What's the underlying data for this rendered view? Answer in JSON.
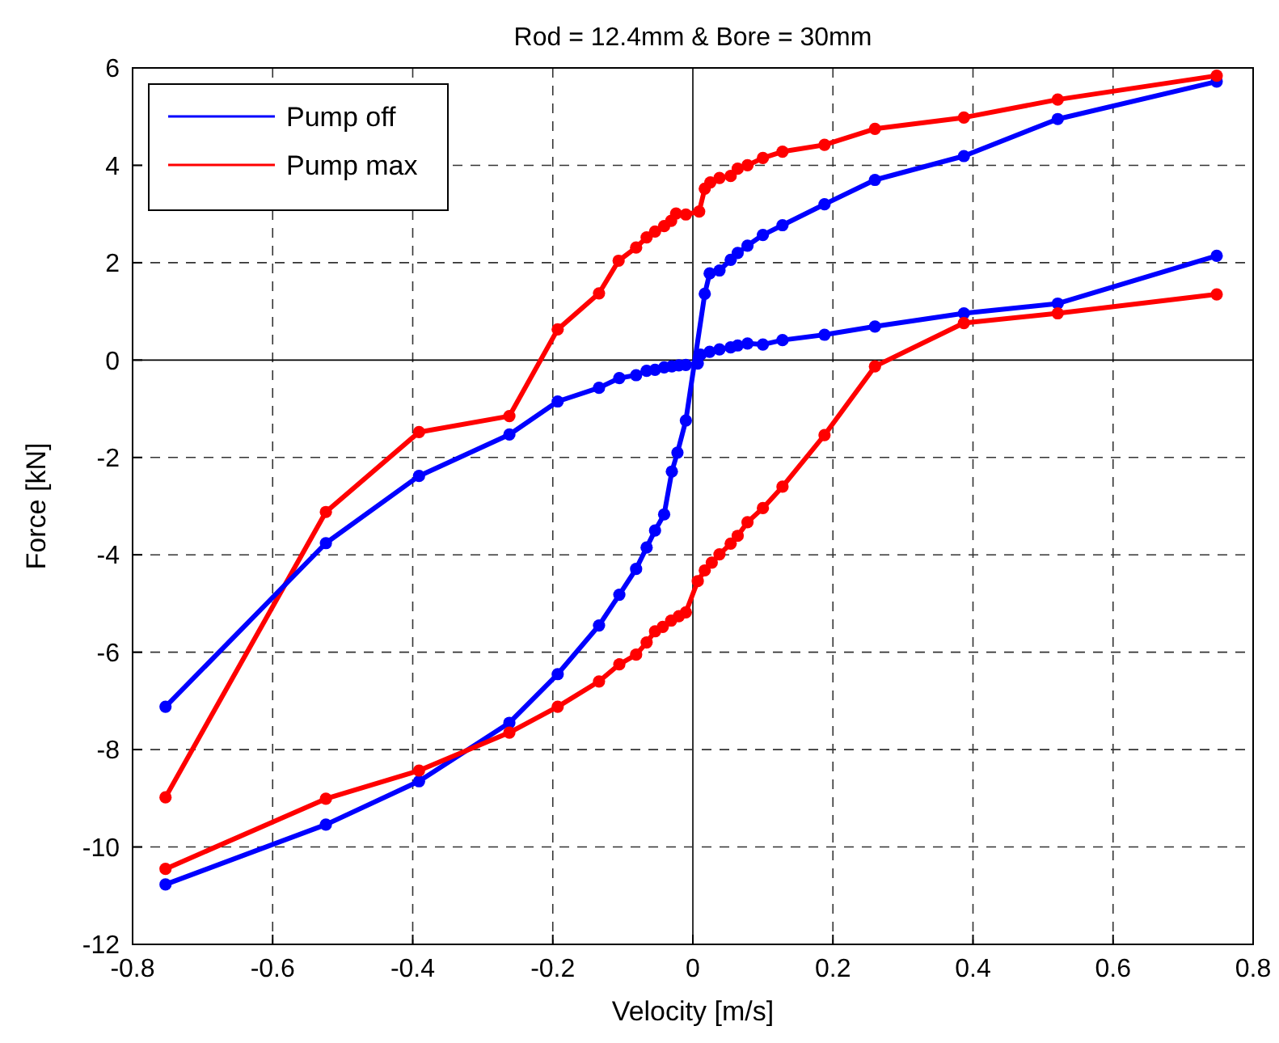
{
  "chart_data": {
    "type": "line",
    "title": "Rod = 12.4mm & Bore = 30mm",
    "xlabel": "Velocity [m/s]",
    "ylabel": "Force [kN]",
    "xlim": [
      -0.8,
      0.8
    ],
    "xticks": [
      -0.8,
      -0.6,
      -0.4,
      -0.2,
      0,
      0.2,
      0.4,
      0.6,
      0.8
    ],
    "ylim": [
      -12,
      6
    ],
    "yticks": [
      -12,
      -10,
      -8,
      -6,
      -4,
      -2,
      0,
      2,
      4,
      6
    ],
    "grid": true,
    "legend": "top left",
    "marker": "circle",
    "line_style": "solid",
    "series": [
      {
        "name": "Pump off",
        "color": "#0000ff",
        "x": [
          -0.753,
          -0.524,
          -0.391,
          -0.262,
          -0.193,
          -0.134,
          -0.105,
          -0.081,
          -0.066,
          -0.054,
          -0.041,
          -0.03,
          -0.022,
          -0.01,
          0.017,
          0.024,
          0.038,
          0.054,
          0.064,
          0.078,
          0.1,
          0.128,
          0.188,
          0.26,
          0.387,
          0.521,
          0.748
        ],
        "values": [
          -10.77,
          -9.54,
          -8.65,
          -7.45,
          -6.45,
          -5.45,
          -4.82,
          -4.29,
          -3.85,
          -3.5,
          -3.17,
          -2.29,
          -1.9,
          -1.24,
          1.36,
          1.78,
          1.84,
          2.06,
          2.2,
          2.35,
          2.57,
          2.77,
          3.2,
          3.7,
          4.19,
          4.95,
          5.72
        ]
      },
      {
        "name": "Pump max",
        "color": "#ff0000",
        "x": [
          -0.753,
          -0.524,
          -0.391,
          -0.262,
          -0.193,
          -0.134,
          -0.106,
          -0.081,
          -0.066,
          -0.054,
          -0.041,
          -0.031,
          -0.024,
          -0.01,
          0.009,
          0.017,
          0.025,
          0.038,
          0.054,
          0.064,
          0.078,
          0.1,
          0.128,
          0.188,
          0.26,
          0.387,
          0.521,
          0.748
        ],
        "values": [
          -8.98,
          -3.12,
          -1.48,
          -1.15,
          0.63,
          1.37,
          2.04,
          2.31,
          2.52,
          2.64,
          2.75,
          2.86,
          3.01,
          2.99,
          3.05,
          3.52,
          3.65,
          3.74,
          3.78,
          3.93,
          4.0,
          4.15,
          4.28,
          4.42,
          4.75,
          4.98,
          5.35,
          5.84
        ]
      },
      {
        "color": "#0000ff",
        "x": [
          -0.753,
          -0.524,
          -0.391,
          -0.262,
          -0.193,
          -0.134,
          -0.105,
          -0.081,
          -0.066,
          -0.054,
          -0.041,
          -0.03,
          -0.02,
          -0.01,
          0.007,
          0.011,
          0.024,
          0.038,
          0.054,
          0.064,
          0.078,
          0.1,
          0.128,
          0.188,
          0.26,
          0.387,
          0.521,
          0.748
        ],
        "values": [
          -7.12,
          -3.76,
          -2.38,
          -1.53,
          -0.85,
          -0.57,
          -0.37,
          -0.31,
          -0.22,
          -0.2,
          -0.15,
          -0.13,
          -0.11,
          -0.1,
          -0.07,
          0.11,
          0.17,
          0.22,
          0.26,
          0.3,
          0.34,
          0.32,
          0.41,
          0.52,
          0.69,
          0.96,
          1.16,
          2.14
        ]
      },
      {
        "color": "#ff0000",
        "x": [
          -0.753,
          -0.524,
          -0.391,
          -0.262,
          -0.193,
          -0.134,
          -0.105,
          -0.081,
          -0.066,
          -0.054,
          -0.043,
          -0.031,
          -0.02,
          -0.01,
          0.007,
          0.017,
          0.027,
          0.038,
          0.054,
          0.064,
          0.078,
          0.1,
          0.128,
          0.188,
          0.26,
          0.387,
          0.521,
          0.748
        ],
        "values": [
          -10.45,
          -9.01,
          -8.43,
          -7.65,
          -7.12,
          -6.6,
          -6.25,
          -6.05,
          -5.8,
          -5.57,
          -5.48,
          -5.35,
          -5.26,
          -5.18,
          -4.54,
          -4.32,
          -4.16,
          -3.99,
          -3.77,
          -3.61,
          -3.33,
          -3.04,
          -2.6,
          -1.54,
          -0.13,
          0.76,
          0.96,
          1.35
        ]
      }
    ]
  }
}
